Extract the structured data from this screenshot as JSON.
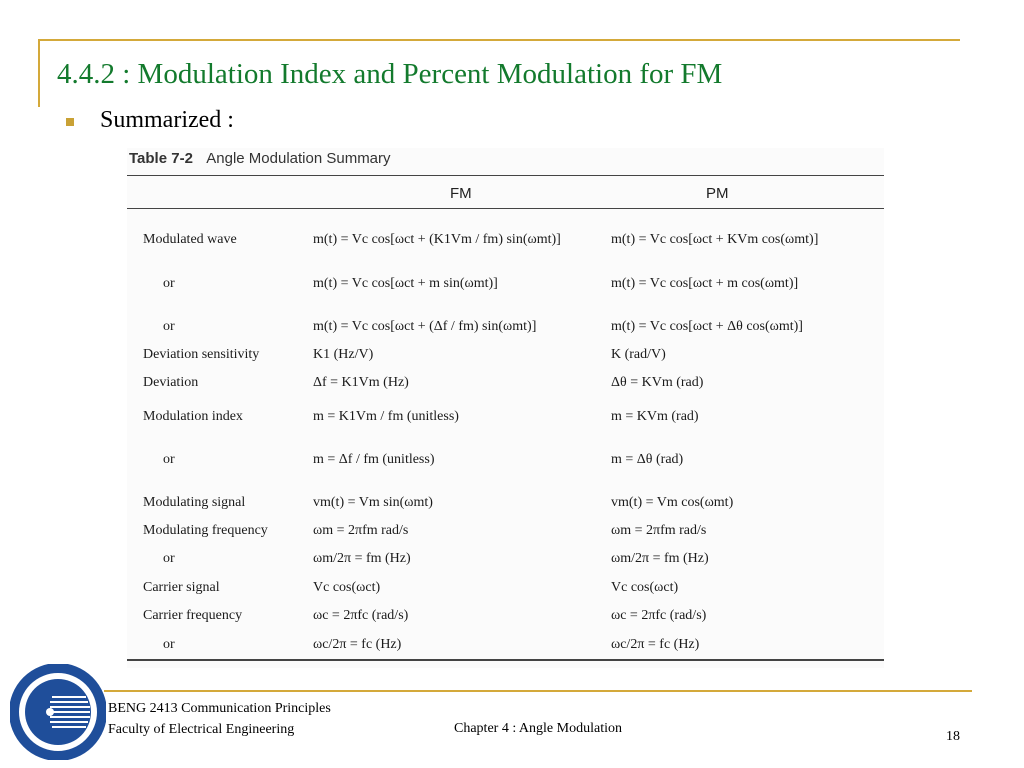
{
  "slide": {
    "title": "4.4.2 : Modulation Index and Percent Modulation for FM",
    "bullet": "Summarized :"
  },
  "table": {
    "caption_number": "Table 7-2",
    "caption_text": "Angle Modulation Summary",
    "headers": {
      "fm": "FM",
      "pm": "PM"
    },
    "rows": [
      {
        "label": "Modulated wave",
        "indent": false,
        "fm": "m(t) = Vc cos[ωct + (K1Vm / fm) sin(ωmt)]",
        "pm": "m(t) = Vc cos[ωct + KVm cos(ωmt)]"
      },
      {
        "label": "or",
        "indent": true,
        "fm": "m(t) = Vc cos[ωct + m sin(ωmt)]",
        "pm": "m(t) = Vc cos[ωct + m cos(ωmt)]"
      },
      {
        "label": "or",
        "indent": true,
        "fm": "m(t) = Vc cos[ωct + (Δf / fm) sin(ωmt)]",
        "pm": "m(t) = Vc cos[ωct + Δθ cos(ωmt)]"
      },
      {
        "label": "Deviation sensitivity",
        "indent": false,
        "fm": "K1 (Hz/V)",
        "pm": "K (rad/V)"
      },
      {
        "label": "Deviation",
        "indent": false,
        "fm": "Δf = K1Vm (Hz)",
        "pm": "Δθ = KVm (rad)"
      },
      {
        "label": "Modulation index",
        "indent": false,
        "fm": "m = K1Vm / fm  (unitless)",
        "pm": "m = KVm (rad)"
      },
      {
        "label": "or",
        "indent": true,
        "fm": "m = Δf / fm  (unitless)",
        "pm": "m = Δθ (rad)"
      },
      {
        "label": "Modulating signal",
        "indent": false,
        "fm": "vm(t) = Vm sin(ωmt)",
        "pm": "vm(t) = Vm cos(ωmt)"
      },
      {
        "label": "Modulating frequency",
        "indent": false,
        "fm": "ωm = 2πfm rad/s",
        "pm": "ωm = 2πfm rad/s"
      },
      {
        "label": "or",
        "indent": true,
        "fm": "ωm/2π = fm (Hz)",
        "pm": "ωm/2π = fm (Hz)"
      },
      {
        "label": "Carrier signal",
        "indent": false,
        "fm": "Vc cos(ωct)",
        "pm": "Vc cos(ωct)"
      },
      {
        "label": "Carrier frequency",
        "indent": false,
        "fm": "ωc = 2πfc (rad/s)",
        "pm": "ωc = 2πfc (rad/s)"
      },
      {
        "label": "or",
        "indent": true,
        "fm": "ωc/2π = fc (Hz)",
        "pm": "ωc/2π = fc (Hz)"
      }
    ]
  },
  "footer": {
    "course": "BENG 2413 Communication Principles",
    "faculty": "Faculty of  Electrical Engineering",
    "chapter": "Chapter 4 : Angle Modulation",
    "page_number": "18"
  },
  "colors": {
    "title": "#137a2d",
    "accent": "#d4a93a",
    "logo_blue": "#1f4e9a"
  }
}
